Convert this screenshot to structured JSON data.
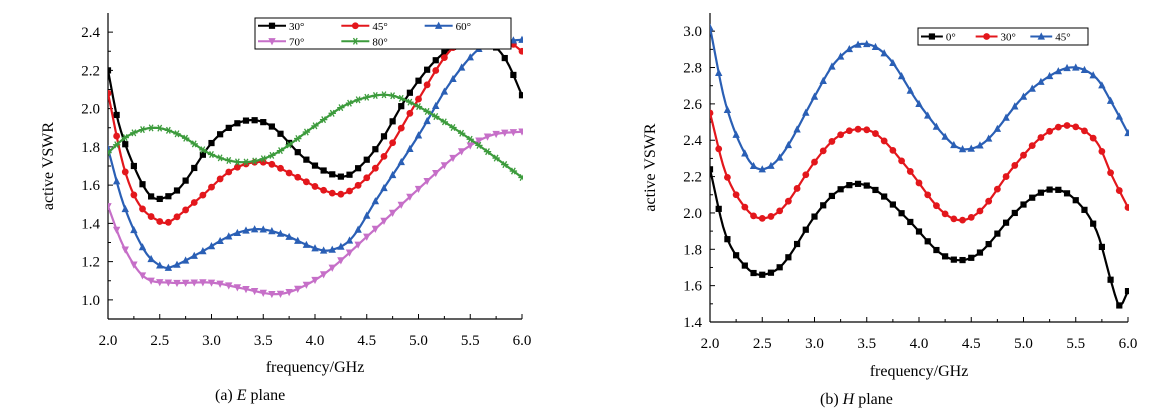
{
  "colors": {
    "black": "#000000",
    "red": "#e3171c",
    "blue": "#2a5fb5",
    "violet": "#c66fc8",
    "green": "#3c9b3c"
  },
  "chart_data": [
    {
      "type": "line",
      "caption_prefix": "(a) ",
      "caption_italic": "E",
      "caption_suffix": " plane",
      "xlabel": "frequency/GHz",
      "ylabel": "active VSWR",
      "xlim": [
        2.0,
        6.0
      ],
      "ylim": [
        0.9,
        2.5
      ],
      "xticks": [
        "2.0",
        "2.5",
        "3.0",
        "3.5",
        "4.0",
        "4.5",
        "5.0",
        "5.5",
        "6.0"
      ],
      "yticks": [
        "1.0",
        "1.2",
        "1.4",
        "1.6",
        "1.8",
        "2.0",
        "2.2",
        "2.4"
      ],
      "legend_location": "top-right",
      "legend_rows": 2,
      "x": [
        2.0,
        2.5,
        3.0,
        3.5,
        4.0,
        4.5,
        5.0,
        5.5,
        6.0
      ],
      "series": [
        {
          "name": "30°",
          "color": "#000000",
          "marker": "square",
          "knots": [
            [
              2.0,
              2.2
            ],
            [
              2.1,
              1.93
            ],
            [
              2.25,
              1.7
            ],
            [
              2.4,
              1.55
            ],
            [
              2.52,
              1.53
            ],
            [
              2.7,
              1.59
            ],
            [
              3.0,
              1.82
            ],
            [
              3.2,
              1.91
            ],
            [
              3.4,
              1.94
            ],
            [
              3.6,
              1.9
            ],
            [
              3.9,
              1.74
            ],
            [
              4.2,
              1.65
            ],
            [
              4.35,
              1.66
            ],
            [
              4.6,
              1.8
            ],
            [
              4.9,
              2.07
            ],
            [
              5.2,
              2.27
            ],
            [
              5.5,
              2.36
            ],
            [
              5.7,
              2.34
            ],
            [
              5.85,
              2.25
            ],
            [
              6.0,
              2.07
            ]
          ]
        },
        {
          "name": "45°",
          "color": "#e3171c",
          "marker": "circle",
          "knots": [
            [
              2.0,
              2.08
            ],
            [
              2.15,
              1.7
            ],
            [
              2.3,
              1.5
            ],
            [
              2.5,
              1.41
            ],
            [
              2.6,
              1.41
            ],
            [
              2.9,
              1.54
            ],
            [
              3.2,
              1.68
            ],
            [
              3.5,
              1.72
            ],
            [
              3.8,
              1.65
            ],
            [
              4.1,
              1.57
            ],
            [
              4.3,
              1.56
            ],
            [
              4.6,
              1.7
            ],
            [
              5.0,
              2.05
            ],
            [
              5.3,
              2.3
            ],
            [
              5.6,
              2.41
            ],
            [
              5.8,
              2.38
            ],
            [
              6.0,
              2.3
            ]
          ]
        },
        {
          "name": "60°",
          "color": "#2a5fb5",
          "marker": "triangle-up",
          "knots": [
            [
              2.0,
              1.79
            ],
            [
              2.15,
              1.5
            ],
            [
              2.35,
              1.26
            ],
            [
              2.5,
              1.18
            ],
            [
              2.6,
              1.17
            ],
            [
              2.9,
              1.25
            ],
            [
              3.2,
              1.34
            ],
            [
              3.45,
              1.37
            ],
            [
              3.7,
              1.34
            ],
            [
              4.0,
              1.27
            ],
            [
              4.15,
              1.26
            ],
            [
              4.35,
              1.32
            ],
            [
              4.6,
              1.53
            ],
            [
              5.0,
              1.86
            ],
            [
              5.3,
              2.13
            ],
            [
              5.6,
              2.32
            ],
            [
              5.8,
              2.35
            ],
            [
              6.0,
              2.36
            ]
          ]
        },
        {
          "name": "70°",
          "color": "#c66fc8",
          "marker": "triangle-down",
          "knots": [
            [
              2.0,
              1.49
            ],
            [
              2.15,
              1.28
            ],
            [
              2.35,
              1.12
            ],
            [
              2.6,
              1.09
            ],
            [
              3.0,
              1.09
            ],
            [
              3.3,
              1.06
            ],
            [
              3.6,
              1.03
            ],
            [
              3.8,
              1.05
            ],
            [
              4.1,
              1.14
            ],
            [
              4.5,
              1.33
            ],
            [
              5.0,
              1.58
            ],
            [
              5.4,
              1.77
            ],
            [
              5.7,
              1.86
            ],
            [
              6.0,
              1.88
            ]
          ]
        },
        {
          "name": "80°",
          "color": "#3c9b3c",
          "marker": "star",
          "knots": [
            [
              2.0,
              1.77
            ],
            [
              2.2,
              1.86
            ],
            [
              2.45,
              1.9
            ],
            [
              2.7,
              1.86
            ],
            [
              3.0,
              1.76
            ],
            [
              3.3,
              1.72
            ],
            [
              3.6,
              1.76
            ],
            [
              4.0,
              1.91
            ],
            [
              4.3,
              2.02
            ],
            [
              4.6,
              2.07
            ],
            [
              4.8,
              2.06
            ],
            [
              5.1,
              1.98
            ],
            [
              5.5,
              1.84
            ],
            [
              6.0,
              1.64
            ]
          ]
        }
      ]
    },
    {
      "type": "line",
      "caption_prefix": "(b) ",
      "caption_italic": "H",
      "caption_suffix": " plane",
      "xlabel": "frequency/GHz",
      "ylabel": "active VSWR",
      "xlim": [
        2.0,
        6.0
      ],
      "ylim": [
        1.4,
        3.1
      ],
      "xticks": [
        "2.0",
        "2.5",
        "3.0",
        "3.5",
        "4.0",
        "4.5",
        "5.0",
        "5.5",
        "6.0"
      ],
      "yticks": [
        "1.4",
        "1.6",
        "1.8",
        "2.0",
        "2.2",
        "2.4",
        "2.6",
        "2.8",
        "3.0"
      ],
      "legend_location": "top-right",
      "legend_rows": 1,
      "x": [
        2.0,
        2.5,
        3.0,
        3.5,
        4.0,
        4.5,
        5.0,
        5.5,
        6.0
      ],
      "series": [
        {
          "name": "0°",
          "color": "#000000",
          "marker": "square",
          "knots": [
            [
              2.0,
              2.24
            ],
            [
              2.15,
              1.88
            ],
            [
              2.35,
              1.7
            ],
            [
              2.5,
              1.66
            ],
            [
              2.7,
              1.72
            ],
            [
              3.0,
              1.98
            ],
            [
              3.2,
              2.11
            ],
            [
              3.4,
              2.16
            ],
            [
              3.6,
              2.12
            ],
            [
              3.9,
              1.96
            ],
            [
              4.2,
              1.78
            ],
            [
              4.4,
              1.74
            ],
            [
              4.6,
              1.79
            ],
            [
              4.9,
              1.99
            ],
            [
              5.1,
              2.09
            ],
            [
              5.3,
              2.13
            ],
            [
              5.5,
              2.07
            ],
            [
              5.7,
              1.9
            ],
            [
              5.85,
              1.6
            ],
            [
              5.92,
              1.49
            ],
            [
              6.0,
              1.57
            ]
          ]
        },
        {
          "name": "30°",
          "color": "#e3171c",
          "marker": "circle",
          "knots": [
            [
              2.0,
              2.55
            ],
            [
              2.15,
              2.22
            ],
            [
              2.35,
              2.02
            ],
            [
              2.5,
              1.97
            ],
            [
              2.7,
              2.03
            ],
            [
              3.0,
              2.28
            ],
            [
              3.2,
              2.41
            ],
            [
              3.4,
              2.46
            ],
            [
              3.6,
              2.43
            ],
            [
              3.9,
              2.24
            ],
            [
              4.2,
              2.02
            ],
            [
              4.4,
              1.96
            ],
            [
              4.6,
              2.02
            ],
            [
              4.9,
              2.25
            ],
            [
              5.2,
              2.43
            ],
            [
              5.45,
              2.48
            ],
            [
              5.7,
              2.39
            ],
            [
              5.85,
              2.2
            ],
            [
              6.0,
              2.03
            ]
          ]
        },
        {
          "name": "45°",
          "color": "#2a5fb5",
          "marker": "triangle-up",
          "knots": [
            [
              2.0,
              3.02
            ],
            [
              2.15,
              2.6
            ],
            [
              2.35,
              2.31
            ],
            [
              2.5,
              2.24
            ],
            [
              2.7,
              2.33
            ],
            [
              3.0,
              2.64
            ],
            [
              3.2,
              2.83
            ],
            [
              3.45,
              2.93
            ],
            [
              3.7,
              2.86
            ],
            [
              4.0,
              2.6
            ],
            [
              4.3,
              2.39
            ],
            [
              4.45,
              2.35
            ],
            [
              4.65,
              2.4
            ],
            [
              5.0,
              2.64
            ],
            [
              5.3,
              2.77
            ],
            [
              5.5,
              2.8
            ],
            [
              5.7,
              2.74
            ],
            [
              5.85,
              2.6
            ],
            [
              6.0,
              2.44
            ]
          ]
        }
      ]
    }
  ]
}
